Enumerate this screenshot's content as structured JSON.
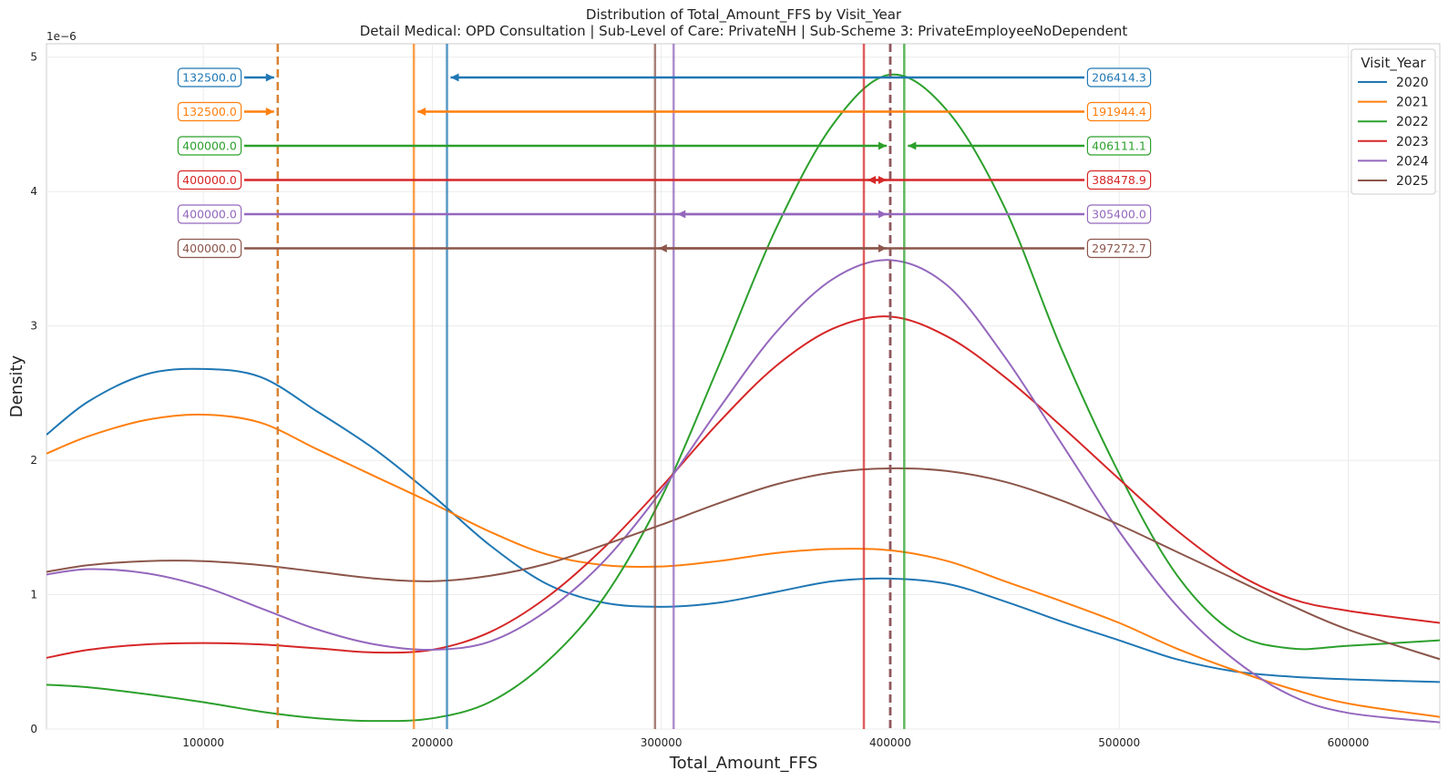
{
  "chart_data": {
    "type": "line",
    "title": "Distribution of Total_Amount_FFS by Visit_Year",
    "subtitle": "Detail Medical: OPD Consultation | Sub-Level of Care: PrivateNH | Sub-Scheme 3: PrivateEmployeeNoDependent",
    "xlabel": "Total_Amount_FFS",
    "ylabel": "Density",
    "y_scale_label": "1e−6",
    "xlim": [
      31500,
      640000
    ],
    "ylim": [
      0,
      5.1
    ],
    "x_ticks": [
      100000,
      200000,
      300000,
      400000,
      500000,
      600000
    ],
    "x_tick_labels": [
      "100000",
      "200000",
      "300000",
      "400000",
      "500000",
      "600000"
    ],
    "y_ticks": [
      0,
      1,
      2,
      3,
      4,
      5
    ],
    "y_tick_labels": [
      "0",
      "1",
      "2",
      "3",
      "4",
      "5"
    ],
    "grid": true,
    "legend_title": "Visit_Year",
    "legend_position": "top-right",
    "series": [
      {
        "name": "2020",
        "color": "#1f77b4",
        "x": [
          31500,
          50000,
          75000,
          100000,
          125000,
          150000,
          175000,
          200000,
          225000,
          250000,
          275000,
          300000,
          325000,
          350000,
          375000,
          400000,
          425000,
          450000,
          475000,
          500000,
          525000,
          550000,
          575000,
          600000,
          640000
        ],
        "y": [
          2.19,
          2.44,
          2.64,
          2.68,
          2.62,
          2.36,
          2.08,
          1.74,
          1.37,
          1.08,
          0.94,
          0.91,
          0.94,
          1.02,
          1.1,
          1.12,
          1.08,
          0.95,
          0.8,
          0.66,
          0.52,
          0.43,
          0.39,
          0.37,
          0.35
        ],
        "mean": 206414.3,
        "median": 132500.0
      },
      {
        "name": "2021",
        "color": "#ff7f0e",
        "x": [
          31500,
          50000,
          75000,
          100000,
          125000,
          150000,
          175000,
          200000,
          225000,
          250000,
          275000,
          300000,
          325000,
          350000,
          375000,
          400000,
          425000,
          450000,
          475000,
          500000,
          525000,
          550000,
          575000,
          600000,
          640000
        ],
        "y": [
          2.05,
          2.18,
          2.3,
          2.34,
          2.28,
          2.08,
          1.88,
          1.68,
          1.47,
          1.3,
          1.22,
          1.21,
          1.25,
          1.31,
          1.34,
          1.33,
          1.25,
          1.1,
          0.95,
          0.79,
          0.6,
          0.44,
          0.3,
          0.19,
          0.09
        ],
        "mean": 191944.4,
        "median": 132500.0
      },
      {
        "name": "2022",
        "color": "#2ca02c",
        "x": [
          31500,
          50000,
          75000,
          100000,
          125000,
          150000,
          175000,
          200000,
          225000,
          250000,
          275000,
          300000,
          325000,
          350000,
          375000,
          400000,
          425000,
          450000,
          475000,
          500000,
          525000,
          550000,
          575000,
          600000,
          640000
        ],
        "y": [
          0.33,
          0.31,
          0.26,
          0.2,
          0.13,
          0.08,
          0.06,
          0.08,
          0.2,
          0.5,
          0.98,
          1.72,
          2.7,
          3.72,
          4.5,
          4.87,
          4.6,
          3.88,
          2.82,
          1.9,
          1.15,
          0.72,
          0.6,
          0.62,
          0.66
        ],
        "mean": 406111.1,
        "median": 400000.0
      },
      {
        "name": "2023",
        "color": "#d62728",
        "x": [
          31500,
          50000,
          75000,
          100000,
          125000,
          150000,
          175000,
          200000,
          225000,
          250000,
          275000,
          300000,
          325000,
          350000,
          375000,
          400000,
          425000,
          450000,
          475000,
          500000,
          525000,
          550000,
          575000,
          600000,
          640000
        ],
        "y": [
          0.53,
          0.59,
          0.63,
          0.64,
          0.63,
          0.6,
          0.57,
          0.59,
          0.72,
          0.98,
          1.35,
          1.8,
          2.28,
          2.7,
          2.98,
          3.07,
          2.92,
          2.62,
          2.25,
          1.86,
          1.48,
          1.17,
          0.97,
          0.88,
          0.79
        ],
        "mean": 388478.9,
        "median": 400000.0
      },
      {
        "name": "2024",
        "color": "#9467bd",
        "x": [
          31500,
          50000,
          75000,
          100000,
          125000,
          150000,
          175000,
          200000,
          225000,
          250000,
          275000,
          300000,
          325000,
          350000,
          375000,
          400000,
          425000,
          450000,
          475000,
          500000,
          525000,
          550000,
          575000,
          600000,
          640000
        ],
        "y": [
          1.15,
          1.19,
          1.16,
          1.06,
          0.9,
          0.74,
          0.63,
          0.59,
          0.65,
          0.88,
          1.25,
          1.77,
          2.38,
          2.95,
          3.35,
          3.49,
          3.3,
          2.77,
          2.12,
          1.47,
          0.92,
          0.52,
          0.25,
          0.12,
          0.05
        ],
        "mean": 305400.0,
        "median": 400000.0
      },
      {
        "name": "2025",
        "color": "#8c564b",
        "x": [
          31500,
          50000,
          75000,
          100000,
          125000,
          150000,
          175000,
          200000,
          225000,
          250000,
          275000,
          300000,
          325000,
          350000,
          375000,
          400000,
          425000,
          450000,
          475000,
          500000,
          525000,
          550000,
          575000,
          600000,
          640000
        ],
        "y": [
          1.17,
          1.22,
          1.25,
          1.25,
          1.22,
          1.17,
          1.12,
          1.1,
          1.14,
          1.23,
          1.37,
          1.52,
          1.68,
          1.82,
          1.91,
          1.94,
          1.92,
          1.84,
          1.7,
          1.52,
          1.32,
          1.12,
          0.92,
          0.74,
          0.52
        ],
        "mean": 297272.7,
        "median": 400000.0
      }
    ]
  }
}
